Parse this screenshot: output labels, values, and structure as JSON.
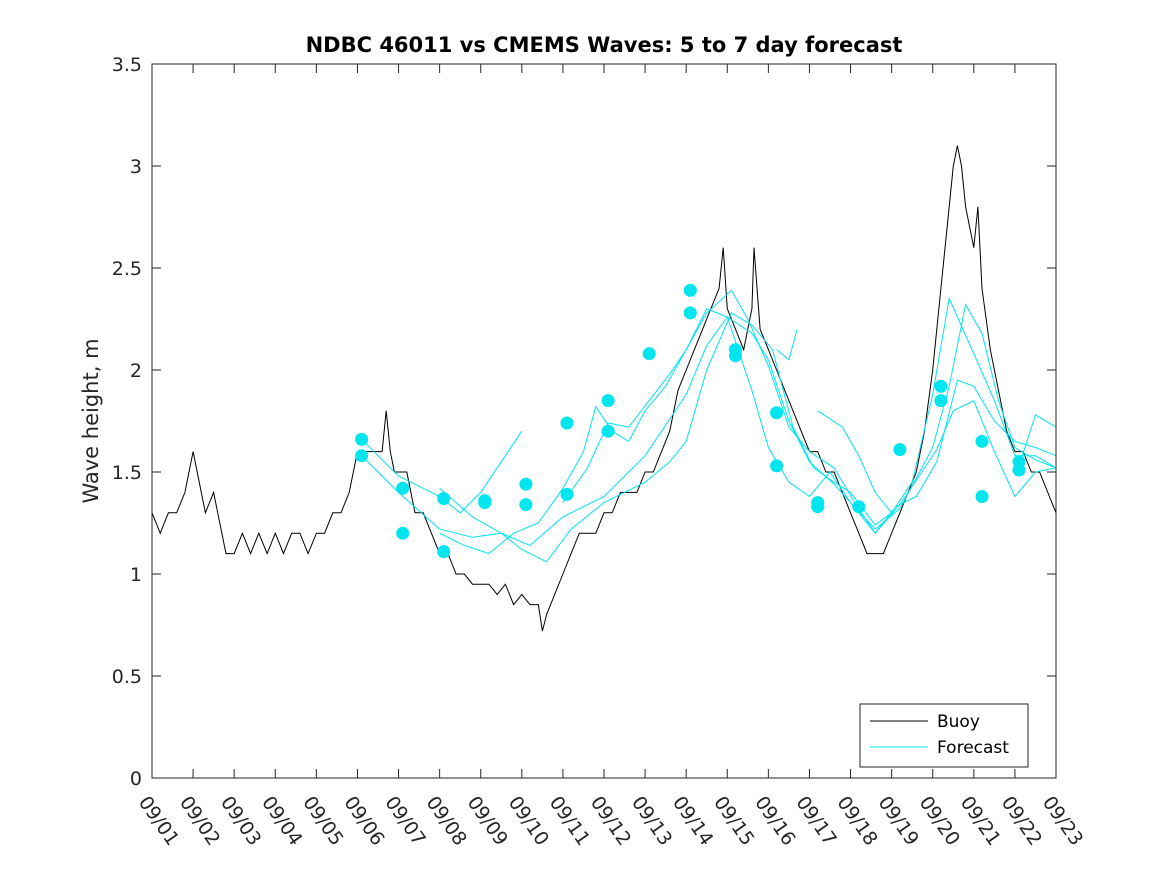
{
  "chart_data": {
    "type": "line",
    "title": "NDBC 46011 vs CMEMS Waves: 5 to 7 day forecast",
    "xlabel": "",
    "ylabel": "Wave height, m",
    "x_unit": "days since 09/01",
    "xlim": [
      0,
      22
    ],
    "ylim": [
      0,
      3.5
    ],
    "yticks": [
      0,
      0.5,
      1,
      1.5,
      2,
      2.5,
      3,
      3.5
    ],
    "ytick_labels": [
      "0",
      "0.5",
      "1",
      "1.5",
      "2",
      "2.5",
      "3",
      "3.5"
    ],
    "xtick_labels": [
      "09/01",
      "09/02",
      "09/03",
      "09/04",
      "09/05",
      "09/06",
      "09/07",
      "09/08",
      "09/09",
      "09/10",
      "09/11",
      "09/12",
      "09/13",
      "09/14",
      "09/15",
      "09/16",
      "09/17",
      "09/18",
      "09/19",
      "09/20",
      "09/21",
      "09/22",
      "09/23"
    ],
    "legend": {
      "location": "bottom-right",
      "entries": [
        {
          "label": "Buoy",
          "color": "#000000"
        },
        {
          "label": "Forecast",
          "color": "#00e5ee"
        }
      ]
    },
    "buoy": {
      "name": "Buoy",
      "color": "#000000",
      "points": [
        [
          0,
          1.3
        ],
        [
          0.2,
          1.2
        ],
        [
          0.4,
          1.3
        ],
        [
          0.6,
          1.3
        ],
        [
          0.8,
          1.4
        ],
        [
          0.9,
          1.5
        ],
        [
          1.0,
          1.6
        ],
        [
          1.1,
          1.5
        ],
        [
          1.2,
          1.4
        ],
        [
          1.3,
          1.3
        ],
        [
          1.5,
          1.4
        ],
        [
          1.6,
          1.3
        ],
        [
          1.8,
          1.1
        ],
        [
          2.0,
          1.1
        ],
        [
          2.2,
          1.2
        ],
        [
          2.4,
          1.1
        ],
        [
          2.6,
          1.2
        ],
        [
          2.8,
          1.1
        ],
        [
          3.0,
          1.2
        ],
        [
          3.2,
          1.1
        ],
        [
          3.4,
          1.2
        ],
        [
          3.6,
          1.2
        ],
        [
          3.8,
          1.1
        ],
        [
          4.0,
          1.2
        ],
        [
          4.2,
          1.2
        ],
        [
          4.4,
          1.3
        ],
        [
          4.6,
          1.3
        ],
        [
          4.8,
          1.4
        ],
        [
          5.0,
          1.6
        ],
        [
          5.2,
          1.6
        ],
        [
          5.4,
          1.6
        ],
        [
          5.6,
          1.6
        ],
        [
          5.7,
          1.8
        ],
        [
          5.8,
          1.6
        ],
        [
          5.9,
          1.5
        ],
        [
          6.0,
          1.5
        ],
        [
          6.2,
          1.5
        ],
        [
          6.3,
          1.4
        ],
        [
          6.4,
          1.3
        ],
        [
          6.6,
          1.3
        ],
        [
          6.8,
          1.2
        ],
        [
          7.0,
          1.1
        ],
        [
          7.2,
          1.1
        ],
        [
          7.4,
          1.0
        ],
        [
          7.6,
          1.0
        ],
        [
          7.8,
          0.95
        ],
        [
          8.0,
          0.95
        ],
        [
          8.2,
          0.95
        ],
        [
          8.4,
          0.9
        ],
        [
          8.6,
          0.95
        ],
        [
          8.8,
          0.85
        ],
        [
          9.0,
          0.9
        ],
        [
          9.2,
          0.85
        ],
        [
          9.4,
          0.85
        ],
        [
          9.5,
          0.72
        ],
        [
          9.6,
          0.8
        ],
        [
          9.8,
          0.9
        ],
        [
          10.0,
          1.0
        ],
        [
          10.2,
          1.1
        ],
        [
          10.4,
          1.2
        ],
        [
          10.6,
          1.2
        ],
        [
          10.8,
          1.2
        ],
        [
          11.0,
          1.3
        ],
        [
          11.2,
          1.3
        ],
        [
          11.4,
          1.4
        ],
        [
          11.6,
          1.4
        ],
        [
          11.8,
          1.4
        ],
        [
          12.0,
          1.5
        ],
        [
          12.2,
          1.5
        ],
        [
          12.4,
          1.6
        ],
        [
          12.6,
          1.7
        ],
        [
          12.8,
          1.9
        ],
        [
          13.0,
          2.0
        ],
        [
          13.2,
          2.1
        ],
        [
          13.4,
          2.2
        ],
        [
          13.6,
          2.3
        ],
        [
          13.8,
          2.4
        ],
        [
          13.9,
          2.6
        ],
        [
          14.0,
          2.3
        ],
        [
          14.2,
          2.2
        ],
        [
          14.4,
          2.1
        ],
        [
          14.6,
          2.3
        ],
        [
          14.65,
          2.6
        ],
        [
          14.8,
          2.2
        ],
        [
          15.0,
          2.1
        ],
        [
          15.2,
          2.0
        ],
        [
          15.4,
          1.9
        ],
        [
          15.6,
          1.8
        ],
        [
          15.8,
          1.7
        ],
        [
          16.0,
          1.6
        ],
        [
          16.2,
          1.6
        ],
        [
          16.4,
          1.5
        ],
        [
          16.6,
          1.5
        ],
        [
          16.8,
          1.4
        ],
        [
          17.0,
          1.3
        ],
        [
          17.2,
          1.2
        ],
        [
          17.4,
          1.1
        ],
        [
          17.6,
          1.1
        ],
        [
          17.8,
          1.1
        ],
        [
          18.0,
          1.2
        ],
        [
          18.2,
          1.3
        ],
        [
          18.4,
          1.4
        ],
        [
          18.6,
          1.5
        ],
        [
          18.8,
          1.7
        ],
        [
          19.0,
          2.0
        ],
        [
          19.2,
          2.4
        ],
        [
          19.4,
          2.8
        ],
        [
          19.5,
          3.0
        ],
        [
          19.6,
          3.1
        ],
        [
          19.7,
          3.0
        ],
        [
          19.8,
          2.8
        ],
        [
          20.0,
          2.6
        ],
        [
          20.1,
          2.8
        ],
        [
          20.2,
          2.4
        ],
        [
          20.4,
          2.1
        ],
        [
          20.6,
          1.9
        ],
        [
          20.8,
          1.7
        ],
        [
          21.0,
          1.6
        ],
        [
          21.2,
          1.6
        ],
        [
          21.4,
          1.5
        ],
        [
          21.6,
          1.5
        ],
        [
          21.8,
          1.4
        ],
        [
          22.0,
          1.3
        ]
      ]
    },
    "forecast_lines": [
      {
        "name": "Forecast",
        "color": "#00e5ee",
        "points": [
          [
            5.1,
            1.66
          ],
          [
            6.0,
            1.48
          ],
          [
            7.0,
            1.38
          ],
          [
            7.5,
            1.3
          ],
          [
            8.0,
            1.4
          ],
          [
            8.5,
            1.55
          ],
          [
            9.0,
            1.7
          ]
        ]
      },
      {
        "name": "Forecast",
        "color": "#00e5ee",
        "points": [
          [
            5.1,
            1.58
          ],
          [
            6.0,
            1.4
          ],
          [
            7.0,
            1.22
          ],
          [
            7.8,
            1.18
          ],
          [
            8.5,
            1.2
          ],
          [
            9.2,
            1.14
          ],
          [
            10.0,
            1.28
          ],
          [
            11.0,
            1.38
          ],
          [
            12.0,
            1.58
          ],
          [
            13.0,
            1.88
          ],
          [
            13.5,
            2.12
          ],
          [
            14.0,
            2.26
          ],
          [
            14.6,
            2.18
          ],
          [
            15.0,
            2.05
          ],
          [
            15.5,
            1.75
          ],
          [
            16.0,
            1.55
          ],
          [
            16.6,
            1.44
          ],
          [
            17.0,
            1.35
          ],
          [
            17.6,
            1.22
          ],
          [
            18.2,
            1.32
          ],
          [
            19.0,
            1.62
          ],
          [
            19.4,
            1.92
          ],
          [
            19.8,
            2.32
          ],
          [
            20.2,
            2.18
          ],
          [
            20.6,
            1.85
          ],
          [
            21.0,
            1.62
          ],
          [
            21.5,
            1.56
          ],
          [
            22.0,
            1.52
          ]
        ]
      },
      {
        "name": "Forecast",
        "color": "#00e5ee",
        "points": [
          [
            7.0,
            1.42
          ],
          [
            7.8,
            1.28
          ],
          [
            8.5,
            1.2
          ],
          [
            9.0,
            1.12
          ],
          [
            9.6,
            1.06
          ],
          [
            10.2,
            1.22
          ],
          [
            11.0,
            1.35
          ],
          [
            12.0,
            1.45
          ],
          [
            12.6,
            1.55
          ],
          [
            13.0,
            1.65
          ],
          [
            13.5,
            2.0
          ],
          [
            14.1,
            2.28
          ],
          [
            14.6,
            2.22
          ],
          [
            15.1,
            2.1
          ],
          [
            15.6,
            1.72
          ],
          [
            16.1,
            1.52
          ],
          [
            16.6,
            1.45
          ],
          [
            17.0,
            1.4
          ],
          [
            17.6,
            1.24
          ],
          [
            18.0,
            1.3
          ],
          [
            18.5,
            1.45
          ],
          [
            19.0,
            1.88
          ],
          [
            19.4,
            2.35
          ],
          [
            20.0,
            2.08
          ],
          [
            20.5,
            1.85
          ],
          [
            21.0,
            1.58
          ],
          [
            21.5,
            1.58
          ],
          [
            22.0,
            1.52
          ]
        ]
      },
      {
        "name": "Forecast",
        "color": "#00e5ee",
        "points": [
          [
            7.0,
            1.2
          ],
          [
            7.6,
            1.14
          ],
          [
            8.2,
            1.1
          ],
          [
            8.8,
            1.2
          ],
          [
            9.4,
            1.25
          ],
          [
            10.0,
            1.42
          ],
          [
            10.5,
            1.6
          ],
          [
            10.8,
            1.82
          ],
          [
            11.2,
            1.7
          ],
          [
            11.6,
            1.65
          ],
          [
            12.0,
            1.8
          ],
          [
            12.5,
            1.92
          ],
          [
            13.0,
            2.1
          ],
          [
            13.5,
            2.28
          ],
          [
            14.1,
            2.39
          ],
          [
            14.5,
            2.25
          ],
          [
            15.0,
            2.02
          ],
          [
            15.5,
            1.72
          ],
          [
            16.0,
            1.6
          ],
          [
            16.6,
            1.52
          ],
          [
            17.1,
            1.35
          ],
          [
            17.6,
            1.2
          ],
          [
            18.1,
            1.33
          ],
          [
            18.6,
            1.38
          ],
          [
            19.1,
            1.55
          ],
          [
            19.6,
            1.95
          ],
          [
            20.0,
            1.92
          ],
          [
            20.5,
            1.75
          ],
          [
            21.0,
            1.65
          ],
          [
            21.5,
            1.62
          ],
          [
            22.0,
            1.58
          ]
        ]
      },
      {
        "name": "Forecast",
        "color": "#00e5ee",
        "points": [
          [
            10.0,
            1.35
          ],
          [
            10.6,
            1.52
          ],
          [
            11.1,
            1.74
          ],
          [
            11.6,
            1.72
          ],
          [
            12.1,
            1.85
          ],
          [
            12.6,
            1.98
          ],
          [
            13.0,
            2.1
          ],
          [
            13.5,
            2.3
          ],
          [
            14.0,
            2.26
          ],
          [
            14.6,
            1.9
          ],
          [
            15.0,
            1.62
          ],
          [
            15.5,
            1.45
          ],
          [
            16.0,
            1.38
          ],
          [
            16.5,
            1.5
          ],
          [
            17.0,
            1.35
          ],
          [
            17.6,
            1.2
          ],
          [
            18.2,
            1.34
          ],
          [
            19.1,
            1.61
          ],
          [
            19.5,
            1.8
          ],
          [
            20.0,
            1.85
          ],
          [
            20.5,
            1.6
          ],
          [
            21.0,
            1.38
          ],
          [
            21.5,
            1.5
          ],
          [
            22.0,
            1.52
          ]
        ]
      },
      {
        "name": "Forecast",
        "color": "#00e5ee",
        "points": [
          [
            16.2,
            1.8
          ],
          [
            16.8,
            1.72
          ],
          [
            17.2,
            1.58
          ],
          [
            17.6,
            1.4
          ],
          [
            18.0,
            1.3
          ]
        ]
      },
      {
        "name": "Forecast",
        "color": "#00e5ee",
        "points": [
          [
            15.2,
            2.1
          ],
          [
            15.5,
            2.05
          ],
          [
            15.7,
            2.2
          ]
        ]
      },
      {
        "name": "Forecast",
        "color": "#00e5ee",
        "points": [
          [
            21.1,
            1.53
          ],
          [
            21.5,
            1.78
          ],
          [
            22.0,
            1.72
          ]
        ]
      }
    ],
    "forecast_markers": [
      [
        5.1,
        1.66
      ],
      [
        5.1,
        1.58
      ],
      [
        6.1,
        1.42
      ],
      [
        6.1,
        1.2
      ],
      [
        7.1,
        1.37
      ],
      [
        7.1,
        1.11
      ],
      [
        8.1,
        1.35
      ],
      [
        8.1,
        1.36
      ],
      [
        9.1,
        1.44
      ],
      [
        9.1,
        1.34
      ],
      [
        10.1,
        1.74
      ],
      [
        10.1,
        1.39
      ],
      [
        11.1,
        1.85
      ],
      [
        11.1,
        1.7
      ],
      [
        12.1,
        2.08
      ],
      [
        13.1,
        2.39
      ],
      [
        13.1,
        2.28
      ],
      [
        14.2,
        2.1
      ],
      [
        14.2,
        2.07
      ],
      [
        15.2,
        1.79
      ],
      [
        15.2,
        1.53
      ],
      [
        16.2,
        1.35
      ],
      [
        16.2,
        1.33
      ],
      [
        17.2,
        1.33
      ],
      [
        18.2,
        1.61
      ],
      [
        19.2,
        1.92
      ],
      [
        19.2,
        1.85
      ],
      [
        20.2,
        1.65
      ],
      [
        20.2,
        1.38
      ],
      [
        21.1,
        1.55
      ],
      [
        21.1,
        1.51
      ]
    ]
  }
}
